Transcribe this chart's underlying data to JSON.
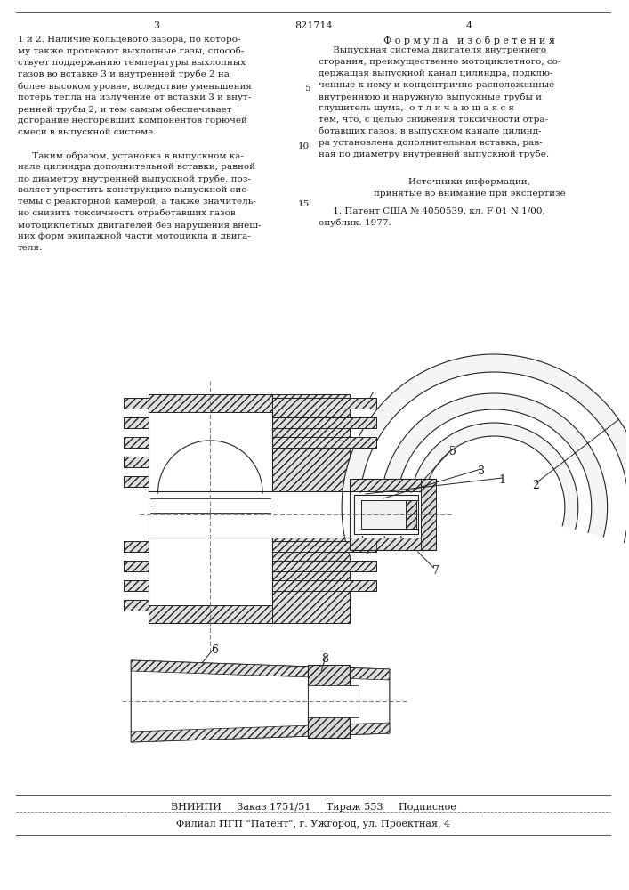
{
  "page_numbers": [
    "3",
    "4"
  ],
  "patent_number": "821714",
  "left_column_text": [
    "1 и 2. Наличие кольцевого зазора, по которо-",
    "му также протекают выхлопные газы, способ-",
    "ствует поддержанию температуры выхлопных",
    "газов во вставке 3 и внутренней трубе 2 на",
    "более высоком уровне, вследствие уменьшения",
    "потерь тепла на излучение от вставки 3 и внут-",
    "ренней трубы 2, и тем самым обеспечивает",
    "догорание несгоревших компонентов горючей",
    "смеси в выпускной системе.",
    "",
    "     Таким образом, установка в выпускном ка-",
    "нале цилиндра дополнительной вставки, равной",
    "по диаметру внутренней выпускной трубе, поз-",
    "воляет упростить конструкцию выпускной сис-",
    "темы с реакторной камерой, а также значитель-",
    "но снизить токсичность отработавших газов",
    "мотоциклетных двигателей без нарушения внеш-",
    "них форм экипажной части мотоцикла и двига-",
    "теля."
  ],
  "right_column_heading": "Ф о р м у л а   и з о б р е т е н и я",
  "right_column_text": [
    "     Выпускная система двигателя внутреннего",
    "сгорания, преимущественно мотоциклетного, со-",
    "держащая выпускной канал цилиндра, подклю-",
    "ченные к нему и концентрично расположенные",
    "внутреннюю и наружную выпускные трубы и",
    "глушитель шума,  о т л и ч а ю щ а я с я",
    "тем, что, с целью снижения токсичности отра-",
    "ботавших газов, в выпускном канале цилинд-",
    "ра установлена дополнительная вставка, рав-",
    "ная по диаметру внутренней выпускной трубе."
  ],
  "sources_heading": "Источники информации,",
  "sources_subheading": "принятые во внимание при экспертизе",
  "source_1": "     1. Патент США № 4050539, кл. F 01 N 1/00,",
  "source_1b": "опублик. 1977.",
  "footer_line1": "ВНИИПИ     Заказ 1751/51     Тираж 553     Подписное",
  "footer_line2": "Филиал ПГП \"Патент\", г. Ужгород, ул. Проектная, 4",
  "bg_color": "#ffffff",
  "text_color": "#1a1a1a"
}
